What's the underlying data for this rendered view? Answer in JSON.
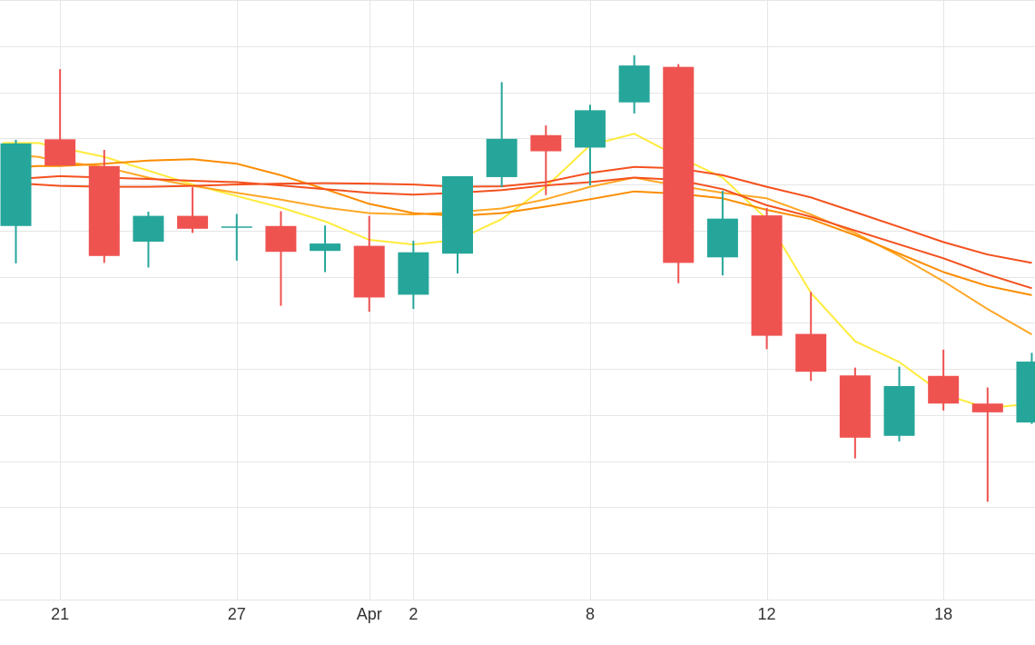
{
  "colors": {
    "up": "#26a69a",
    "down": "#ef5350",
    "grid": "#e6e6e6",
    "ma_fast": "#ffeb3b",
    "ma_mid": "#ffa726",
    "ma_slow": "#fb8c00",
    "ma_slowest": "#f4511e"
  },
  "chart_data": {
    "type": "candlestick",
    "x_ticks": [
      {
        "index": 1,
        "label": "21"
      },
      {
        "index": 5,
        "label": "27"
      },
      {
        "index": 8,
        "label": "Apr"
      },
      {
        "index": 9,
        "label": "2"
      },
      {
        "index": 13,
        "label": "8"
      },
      {
        "index": 17,
        "label": "12"
      },
      {
        "index": 21,
        "label": "18"
      }
    ],
    "y_range": [
      0,
      13
    ],
    "grid": true,
    "candles": [
      {
        "i": 0,
        "o": 8.1,
        "h": 9.97,
        "l": 7.29,
        "c": 9.89
      },
      {
        "i": 1,
        "o": 9.98,
        "h": 11.5,
        "l": 9.45,
        "c": 9.41
      },
      {
        "i": 2,
        "o": 9.4,
        "h": 9.75,
        "l": 7.3,
        "c": 7.45
      },
      {
        "i": 3,
        "o": 7.76,
        "h": 8.41,
        "l": 7.2,
        "c": 8.32
      },
      {
        "i": 4,
        "o": 8.32,
        "h": 8.94,
        "l": 7.95,
        "c": 8.04
      },
      {
        "i": 5,
        "o": 8.09,
        "h": 8.36,
        "l": 7.35,
        "c": 8.09
      },
      {
        "i": 6,
        "o": 8.1,
        "h": 8.42,
        "l": 6.37,
        "c": 7.54
      },
      {
        "i": 7,
        "o": 7.56,
        "h": 8.11,
        "l": 7.1,
        "c": 7.72
      },
      {
        "i": 8,
        "o": 7.67,
        "h": 8.32,
        "l": 6.24,
        "c": 6.55
      },
      {
        "i": 9,
        "o": 6.61,
        "h": 7.78,
        "l": 6.3,
        "c": 7.53
      },
      {
        "i": 10,
        "o": 7.5,
        "h": 9.13,
        "l": 7.07,
        "c": 9.18
      },
      {
        "i": 11,
        "o": 9.16,
        "h": 11.22,
        "l": 8.94,
        "c": 9.99
      },
      {
        "i": 12,
        "o": 10.07,
        "h": 10.28,
        "l": 8.77,
        "c": 9.72
      },
      {
        "i": 13,
        "o": 9.8,
        "h": 10.73,
        "l": 8.98,
        "c": 10.61
      },
      {
        "i": 14,
        "o": 10.78,
        "h": 11.8,
        "l": 10.54,
        "c": 11.58
      },
      {
        "i": 15,
        "o": 11.55,
        "h": 11.61,
        "l": 6.86,
        "c": 7.3
      },
      {
        "i": 16,
        "o": 7.42,
        "h": 8.86,
        "l": 7.03,
        "c": 8.26
      },
      {
        "i": 17,
        "o": 8.33,
        "h": 8.49,
        "l": 5.43,
        "c": 5.72
      },
      {
        "i": 18,
        "o": 5.76,
        "h": 6.67,
        "l": 4.74,
        "c": 4.94
      },
      {
        "i": 19,
        "o": 4.86,
        "h": 5.03,
        "l": 3.06,
        "c": 3.51
      },
      {
        "i": 20,
        "o": 3.55,
        "h": 5.05,
        "l": 3.43,
        "c": 4.63
      },
      {
        "i": 21,
        "o": 4.85,
        "h": 5.42,
        "l": 4.1,
        "c": 4.25
      },
      {
        "i": 22,
        "o": 4.25,
        "h": 4.6,
        "l": 2.12,
        "c": 4.06
      },
      {
        "i": 23,
        "o": 3.84,
        "h": 5.35,
        "l": 3.81,
        "c": 5.16
      }
    ],
    "moving_averages": [
      {
        "color_key": "ma_fast",
        "points": [
          [
            -0.3,
            9.9
          ],
          [
            0.5,
            9.9
          ],
          [
            1,
            9.8
          ],
          [
            2,
            9.6
          ],
          [
            3,
            9.3
          ],
          [
            4,
            9.0
          ],
          [
            5,
            8.75
          ],
          [
            6,
            8.5
          ],
          [
            7,
            8.2
          ],
          [
            8,
            7.8
          ],
          [
            9,
            7.7
          ],
          [
            10,
            7.8
          ],
          [
            11,
            8.25
          ],
          [
            12,
            8.95
          ],
          [
            13,
            9.85
          ],
          [
            14,
            10.1
          ],
          [
            15,
            9.6
          ],
          [
            16,
            9.15
          ],
          [
            17,
            8.25
          ],
          [
            18,
            6.65
          ],
          [
            19,
            5.6
          ],
          [
            20,
            5.15
          ],
          [
            21,
            4.45
          ],
          [
            22,
            4.15
          ],
          [
            23,
            4.25
          ]
        ]
      },
      {
        "color_key": "ma_mid",
        "points": [
          [
            -0.3,
            9.65
          ],
          [
            0.5,
            9.6
          ],
          [
            1,
            9.5
          ],
          [
            2,
            9.38
          ],
          [
            3,
            9.15
          ],
          [
            4,
            8.97
          ],
          [
            5,
            8.82
          ],
          [
            6,
            8.67
          ],
          [
            7,
            8.5
          ],
          [
            8,
            8.38
          ],
          [
            9,
            8.35
          ],
          [
            10,
            8.4
          ],
          [
            11,
            8.48
          ],
          [
            12,
            8.68
          ],
          [
            13,
            8.95
          ],
          [
            14,
            9.15
          ],
          [
            15,
            8.97
          ],
          [
            16,
            8.82
          ],
          [
            17,
            8.7
          ],
          [
            18,
            8.35
          ],
          [
            19,
            7.95
          ],
          [
            20,
            7.45
          ],
          [
            21,
            6.9
          ],
          [
            22,
            6.3
          ],
          [
            23,
            5.75
          ]
        ]
      },
      {
        "color_key": "ma_slow",
        "points": [
          [
            -0.3,
            9.35
          ],
          [
            0.5,
            9.4
          ],
          [
            1,
            9.4
          ],
          [
            2,
            9.45
          ],
          [
            3,
            9.52
          ],
          [
            4,
            9.55
          ],
          [
            5,
            9.45
          ],
          [
            6,
            9.2
          ],
          [
            7,
            8.9
          ],
          [
            8,
            8.58
          ],
          [
            9,
            8.38
          ],
          [
            10,
            8.32
          ],
          [
            11,
            8.38
          ],
          [
            12,
            8.52
          ],
          [
            13,
            8.68
          ],
          [
            14,
            8.85
          ],
          [
            15,
            8.8
          ],
          [
            16,
            8.7
          ],
          [
            17,
            8.45
          ],
          [
            18,
            8.25
          ],
          [
            19,
            7.9
          ],
          [
            20,
            7.5
          ],
          [
            21,
            7.1
          ],
          [
            22,
            6.8
          ],
          [
            23,
            6.6
          ]
        ]
      },
      {
        "color_key": "ma_slowest",
        "points": [
          [
            -0.3,
            9.1
          ],
          [
            0.5,
            9.15
          ],
          [
            1,
            9.18
          ],
          [
            2,
            9.15
          ],
          [
            3,
            9.12
          ],
          [
            4,
            9.08
          ],
          [
            5,
            9.05
          ],
          [
            6,
            8.98
          ],
          [
            7,
            8.9
          ],
          [
            8,
            8.82
          ],
          [
            9,
            8.78
          ],
          [
            10,
            8.82
          ],
          [
            11,
            8.88
          ],
          [
            12,
            8.98
          ],
          [
            13,
            9.05
          ],
          [
            14,
            9.15
          ],
          [
            15,
            9.1
          ],
          [
            16,
            8.9
          ],
          [
            17,
            8.55
          ],
          [
            18,
            8.3
          ],
          [
            19,
            8.0
          ],
          [
            20,
            7.7
          ],
          [
            21,
            7.4
          ],
          [
            22,
            7.05
          ],
          [
            23,
            6.75
          ]
        ]
      },
      {
        "color_key": "ma_slowest",
        "points": [
          [
            -0.3,
            9.05
          ],
          [
            0.5,
            9.0
          ],
          [
            1,
            8.97
          ],
          [
            2,
            8.95
          ],
          [
            3,
            8.95
          ],
          [
            4,
            8.97
          ],
          [
            5,
            9.0
          ],
          [
            6,
            9.02
          ],
          [
            7,
            9.03
          ],
          [
            8,
            9.02
          ],
          [
            9,
            9.0
          ],
          [
            10,
            8.95
          ],
          [
            11,
            8.96
          ],
          [
            12,
            9.05
          ],
          [
            13,
            9.25
          ],
          [
            14,
            9.38
          ],
          [
            15,
            9.35
          ],
          [
            16,
            9.2
          ],
          [
            17,
            8.95
          ],
          [
            18,
            8.72
          ],
          [
            19,
            8.4
          ],
          [
            20,
            8.08
          ],
          [
            21,
            7.75
          ],
          [
            22,
            7.48
          ],
          [
            23,
            7.3
          ]
        ]
      }
    ]
  }
}
